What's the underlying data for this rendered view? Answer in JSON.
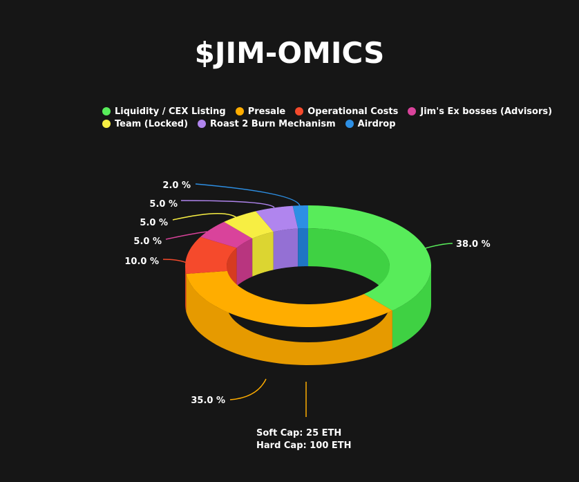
{
  "chart_data": {
    "type": "pie",
    "title": "$JIM-OMICS",
    "legend_position": "top",
    "categories": [
      "Liquidity / CEX Listing",
      "Presale",
      "Operational Costs",
      "Jim's Ex bosses (Advisors)",
      "Team (Locked)",
      "Roast 2 Burn Mechanism",
      "Airdrop"
    ],
    "values": [
      38.0,
      35.0,
      10.0,
      5.0,
      5.0,
      5.0,
      2.0
    ],
    "labels": [
      "38.0 %",
      "35.0 %",
      "10.0 %",
      "5.0 %",
      "5.0 %",
      "5.0 %",
      "2.0 %"
    ],
    "colors": [
      "#58ec5a",
      "#ffad00",
      "#f54a2c",
      "#d9439b",
      "#f7ee43",
      "#b085ee",
      "#2d8fe4"
    ],
    "side_colors": [
      "#3fd143",
      "#e69a00",
      "#d63b20",
      "#b8357f",
      "#dcd531",
      "#9470d4",
      "#1f75c4"
    ],
    "annotation": [
      "Soft Cap: 25 ETH",
      "Hard Cap: 100 ETH"
    ]
  }
}
